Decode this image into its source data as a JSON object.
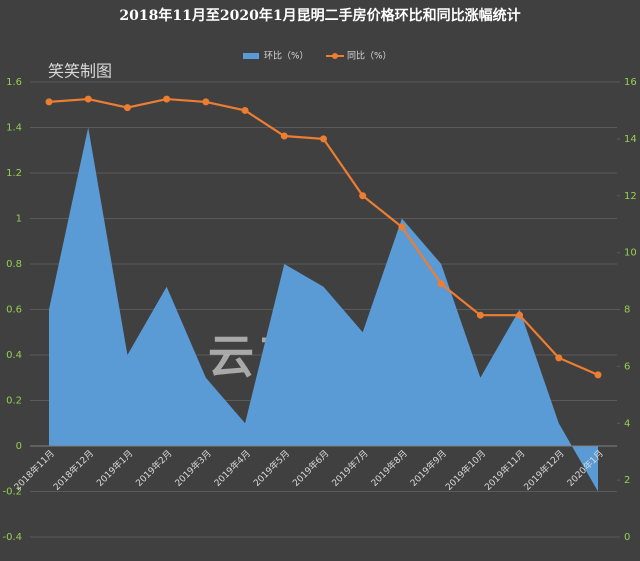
{
  "chart_data": {
    "type": "area-line",
    "title": "2018年11月至2020年1月昆明二手房价格环比和同比涨幅统计",
    "annotations": [
      "笑笑制图",
      "云南楼事"
    ],
    "legend": "top",
    "grid": true,
    "categories": [
      "2018年11月",
      "2018年12月",
      "2019年1月",
      "2019年2月",
      "2019年3月",
      "2019年4月",
      "2019年5月",
      "2019年6月",
      "2019年7月",
      "2019年8月",
      "2019年9月",
      "2019年10月",
      "2019年11月",
      "2019年12月",
      "2020年1月"
    ],
    "series": [
      {
        "name": "环比（%）",
        "type": "area",
        "axis": "y",
        "color": "#5b9bd5",
        "values": [
          0.6,
          1.4,
          0.4,
          0.7,
          0.3,
          0.1,
          0.8,
          0.7,
          0.5,
          1.0,
          0.8,
          0.3,
          0.6,
          0.1,
          -0.2
        ]
      },
      {
        "name": "同比（%）",
        "type": "line",
        "axis": "y2",
        "color": "#ed7d31",
        "values": [
          15.3,
          15.4,
          15.1,
          15.4,
          15.3,
          15.0,
          14.1,
          14.0,
          12.0,
          10.9,
          8.9,
          7.8,
          7.8,
          6.3,
          5.7
        ]
      }
    ],
    "ylim": [
      -0.4,
      1.6
    ],
    "yticks": [
      -0.4,
      -0.2,
      0,
      0.2,
      0.4,
      0.6,
      0.8,
      1,
      1.2,
      1.4,
      1.6
    ],
    "y2lim": [
      0,
      16
    ],
    "y2ticks": [
      0,
      2,
      4,
      6,
      8,
      10,
      12,
      14,
      16
    ]
  }
}
